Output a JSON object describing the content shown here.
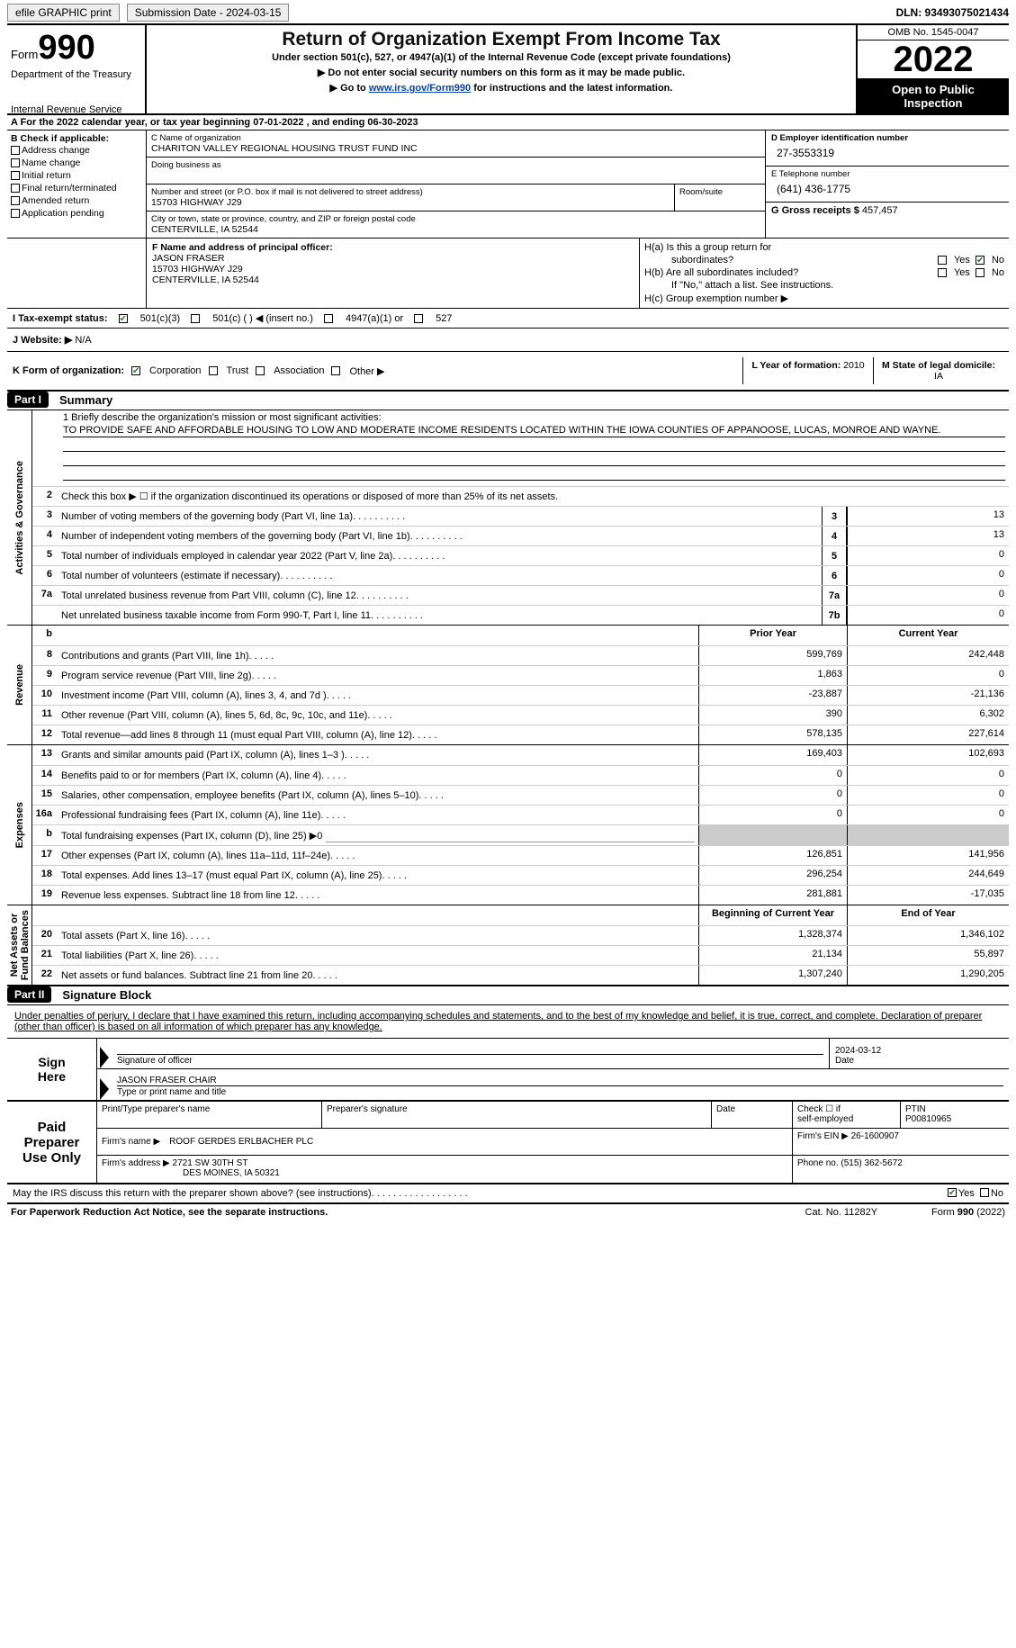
{
  "topbar": {
    "efile": "efile GRAPHIC print",
    "submission_label": "Submission Date - 2024-03-15",
    "dln": "DLN: 93493075021434"
  },
  "header": {
    "form_prefix": "Form",
    "form_num": "990",
    "dept": "Department of the Treasury",
    "irs": "Internal Revenue Service",
    "title": "Return of Organization Exempt From Income Tax",
    "sub": "Under section 501(c), 527, or 4947(a)(1) of the Internal Revenue Code (except private foundations)",
    "note1": "▶ Do not enter social security numbers on this form as it may be made public.",
    "note2_pre": "▶ Go to ",
    "note2_link": "www.irs.gov/Form990",
    "note2_post": " for instructions and the latest information.",
    "omb": "OMB No. 1545-0047",
    "year": "2022",
    "inspect1": "Open to Public",
    "inspect2": "Inspection"
  },
  "line_a": {
    "text_pre": "A For the 2022 calendar year, or tax year beginning ",
    "begin": "07-01-2022",
    "mid": "   , and ending ",
    "end": "06-30-2023"
  },
  "section_b": {
    "header": "B Check if applicable:",
    "opts": [
      "Address change",
      "Name change",
      "Initial return",
      "Final return/terminated",
      "Amended return",
      "Application pending"
    ]
  },
  "section_c": {
    "name_lbl": "C Name of organization",
    "name": "CHARITON VALLEY REGIONAL HOUSING TRUST FUND INC",
    "dba_lbl": "Doing business as",
    "addr_lbl": "Number and street (or P.O. box if mail is not delivered to street address)",
    "room_lbl": "Room/suite",
    "street": "15703 HIGHWAY J29",
    "city_lbl": "City or town, state or province, country, and ZIP or foreign postal code",
    "city": "CENTERVILLE, IA  52544"
  },
  "section_d": {
    "ein_lbl": "D Employer identification number",
    "ein": "27-3553319",
    "phone_lbl": "E Telephone number",
    "phone": "(641) 436-1775",
    "gross_lbl": "G Gross receipts $",
    "gross": "457,457"
  },
  "section_f": {
    "lbl": "F Name and address of principal officer:",
    "name": "JASON FRASER",
    "street": "15703 HIGHWAY J29",
    "city": "CENTERVILLE, IA  52544"
  },
  "section_h": {
    "a1": "H(a)  Is this a group return for",
    "a2": "subordinates?",
    "b1": "H(b)  Are all subordinates included?",
    "b2": "If \"No,\" attach a list. See instructions.",
    "c": "H(c)  Group exemption number ▶",
    "yes": "Yes",
    "no": "No"
  },
  "line_i": {
    "lbl": "I  Tax-exempt status:",
    "o1": "501(c)(3)",
    "o2": "501(c) (  ) ◀ (insert no.)",
    "o3": "4947(a)(1) or",
    "o4": "527"
  },
  "line_j": {
    "lbl": "J  Website: ▶",
    "val": "  N/A"
  },
  "line_k": {
    "lbl": "K Form of organization:",
    "o1": "Corporation",
    "o2": "Trust",
    "o3": "Association",
    "o4": "Other ▶",
    "l_lbl": "L Year of formation:",
    "l_val": "2010",
    "m_lbl": "M State of legal domicile:",
    "m_val": "IA"
  },
  "part1": {
    "num": "Part I",
    "title": "Summary"
  },
  "mission": {
    "lbl": "1   Briefly describe the organization's mission or most significant activities:",
    "text": "TO PROVIDE SAFE AND AFFORDABLE HOUSING TO LOW AND MODERATE INCOME RESIDENTS LOCATED WITHIN THE IOWA COUNTIES OF APPANOOSE, LUCAS, MONROE AND WAYNE."
  },
  "line2": "Check this box ▶ ☐ if the organization discontinued its operations or disposed of more than 25% of its net assets.",
  "gov_rows": [
    {
      "n": "3",
      "d": "Number of voting members of the governing body (Part VI, line 1a)",
      "box": "3",
      "v": "13"
    },
    {
      "n": "4",
      "d": "Number of independent voting members of the governing body (Part VI, line 1b)",
      "box": "4",
      "v": "13"
    },
    {
      "n": "5",
      "d": "Total number of individuals employed in calendar year 2022 (Part V, line 2a)",
      "box": "5",
      "v": "0"
    },
    {
      "n": "6",
      "d": "Total number of volunteers (estimate if necessary)",
      "box": "6",
      "v": "0"
    },
    {
      "n": "7a",
      "d": "Total unrelated business revenue from Part VIII, column (C), line 12",
      "box": "7a",
      "v": "0"
    },
    {
      "n": "",
      "d": "Net unrelated business taxable income from Form 990-T, Part I, line 11",
      "box": "7b",
      "v": "0"
    }
  ],
  "pyr_hdr": {
    "b": "b",
    "py": "Prior Year",
    "cy": "Current Year"
  },
  "rev_rows": [
    {
      "n": "8",
      "d": "Contributions and grants (Part VIII, line 1h)",
      "py": "599,769",
      "cy": "242,448"
    },
    {
      "n": "9",
      "d": "Program service revenue (Part VIII, line 2g)",
      "py": "1,863",
      "cy": "0"
    },
    {
      "n": "10",
      "d": "Investment income (Part VIII, column (A), lines 3, 4, and 7d )",
      "py": "-23,887",
      "cy": "-21,136"
    },
    {
      "n": "11",
      "d": "Other revenue (Part VIII, column (A), lines 5, 6d, 8c, 9c, 10c, and 11e)",
      "py": "390",
      "cy": "6,302"
    },
    {
      "n": "12",
      "d": "Total revenue—add lines 8 through 11 (must equal Part VIII, column (A), line 12)",
      "py": "578,135",
      "cy": "227,614"
    }
  ],
  "exp_rows": [
    {
      "n": "13",
      "d": "Grants and similar amounts paid (Part IX, column (A), lines 1–3 )",
      "py": "169,403",
      "cy": "102,693"
    },
    {
      "n": "14",
      "d": "Benefits paid to or for members (Part IX, column (A), line 4)",
      "py": "0",
      "cy": "0"
    },
    {
      "n": "15",
      "d": "Salaries, other compensation, employee benefits (Part IX, column (A), lines 5–10)",
      "py": "0",
      "cy": "0"
    },
    {
      "n": "16a",
      "d": "Professional fundraising fees (Part IX, column (A), line 11e)",
      "py": "0",
      "cy": "0"
    },
    {
      "n": "b",
      "d": "Total fundraising expenses (Part IX, column (D), line 25) ▶0",
      "py": "",
      "cy": "",
      "shaded": true,
      "inline_underline": true
    },
    {
      "n": "17",
      "d": "Other expenses (Part IX, column (A), lines 11a–11d, 11f–24e)",
      "py": "126,851",
      "cy": "141,956"
    },
    {
      "n": "18",
      "d": "Total expenses. Add lines 13–17 (must equal Part IX, column (A), line 25)",
      "py": "296,254",
      "cy": "244,649"
    },
    {
      "n": "19",
      "d": "Revenue less expenses. Subtract line 18 from line 12",
      "py": "281,881",
      "cy": "-17,035"
    }
  ],
  "na_hdr": {
    "py": "Beginning of Current Year",
    "cy": "End of Year"
  },
  "na_rows": [
    {
      "n": "20",
      "d": "Total assets (Part X, line 16)",
      "py": "1,328,374",
      "cy": "1,346,102"
    },
    {
      "n": "21",
      "d": "Total liabilities (Part X, line 26)",
      "py": "21,134",
      "cy": "55,897"
    },
    {
      "n": "22",
      "d": "Net assets or fund balances. Subtract line 21 from line 20",
      "py": "1,307,240",
      "cy": "1,290,205"
    }
  ],
  "side": {
    "gov": "Activities & Governance",
    "rev": "Revenue",
    "exp": "Expenses",
    "na": "Net Assets or\nFund Balances"
  },
  "part2": {
    "num": "Part II",
    "title": "Signature Block"
  },
  "sig": {
    "intro": "Under penalties of perjury, I declare that I have examined this return, including accompanying schedules and statements, and to the best of my knowledge and belief, it is true, correct, and complete. Declaration of preparer (other than officer) is based on all information of which preparer has any knowledge.",
    "here": "Sign\nHere",
    "sig_lbl": "Signature of officer",
    "date": "2024-03-12",
    "date_lbl": "Date",
    "name": "JASON FRASER  CHAIR",
    "name_lbl": "Type or print name and title"
  },
  "prep": {
    "left": "Paid\nPreparer\nUse Only",
    "h1": "Print/Type preparer's name",
    "h2": "Preparer's signature",
    "h3": "Date",
    "h4_pre": "Check ☐ if",
    "h4_sub": "self-employed",
    "h5": "PTIN",
    "ptin": "P00810965",
    "firm_lbl": "Firm's name    ▶",
    "firm": "ROOF GERDES ERLBACHER PLC",
    "ein_lbl": "Firm's EIN ▶",
    "ein": "26-1600907",
    "addr_lbl": "Firm's address ▶",
    "addr1": "2721 SW 30TH ST",
    "addr2": "DES MOINES, IA  50321",
    "phone_lbl": "Phone no.",
    "phone": "(515) 362-5672"
  },
  "discuss": {
    "q": "May the IRS discuss this return with the preparer shown above? (see instructions)",
    "yes": "Yes",
    "no": "No"
  },
  "footer": {
    "pra": "For Paperwork Reduction Act Notice, see the separate instructions.",
    "cat": "Cat. No. 11282Y",
    "form": "Form 990 (2022)"
  }
}
